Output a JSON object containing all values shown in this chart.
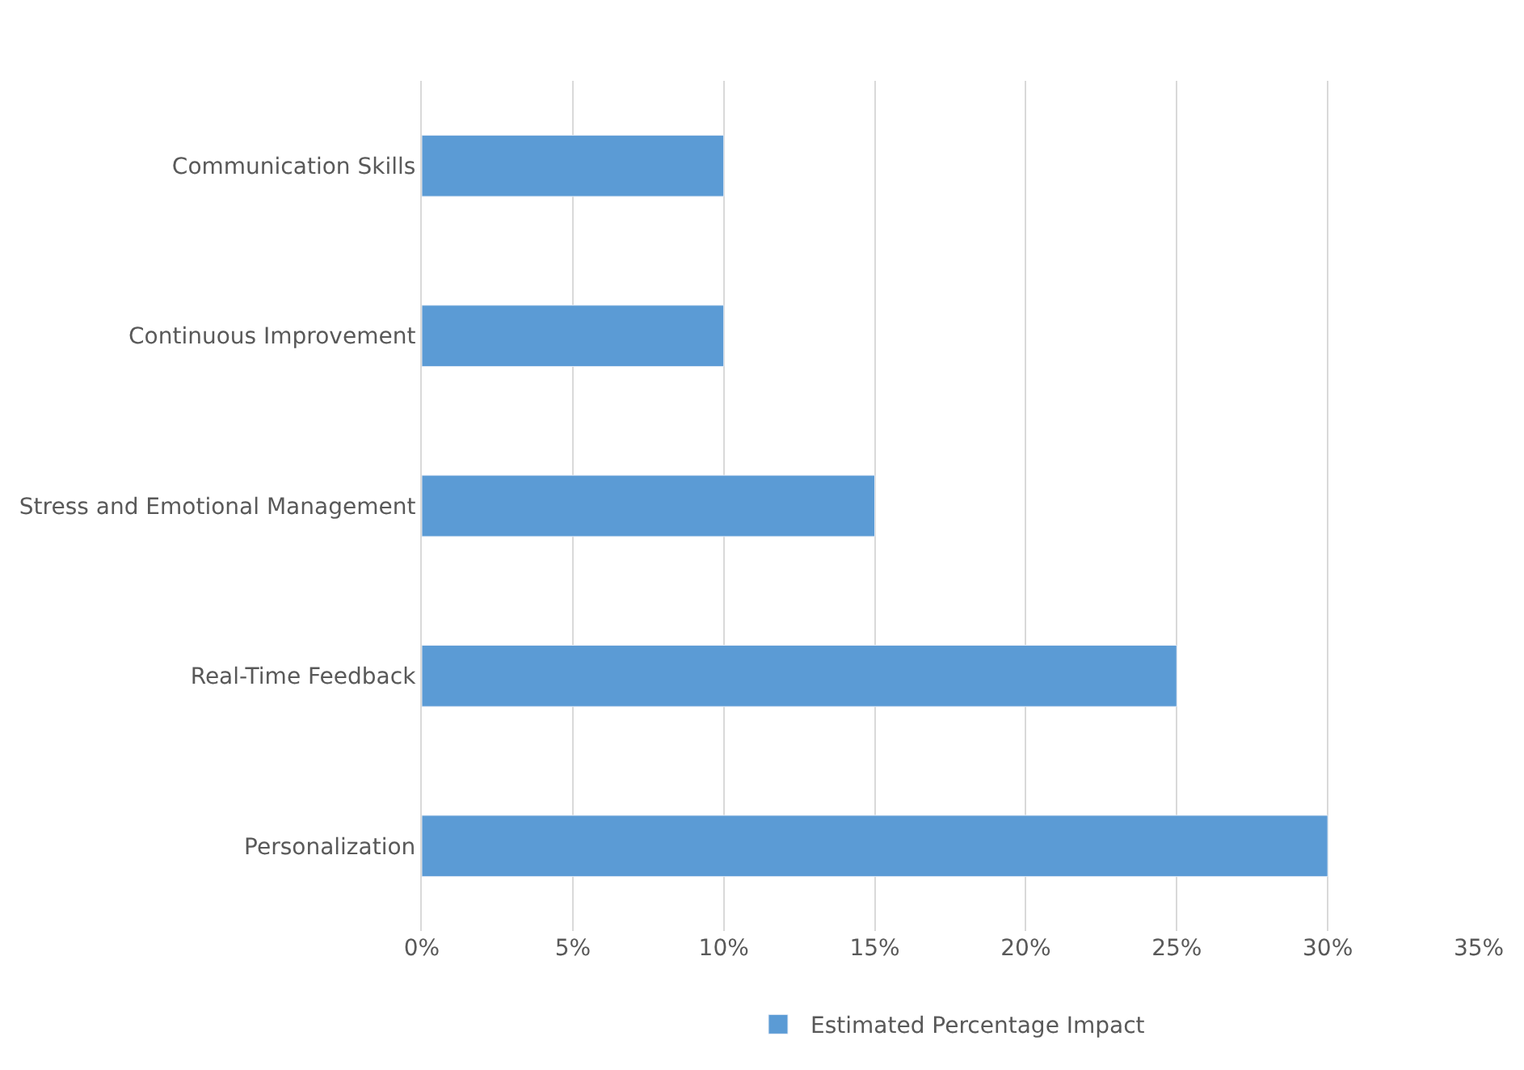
{
  "chart_data": {
    "type": "bar",
    "orientation": "horizontal",
    "categories": [
      "Communication Skills",
      "Continuous Improvement",
      "Stress and Emotional Management",
      "Real-Time Feedback",
      "Personalization"
    ],
    "series": [
      {
        "name": "Estimated Percentage Impact",
        "color": "#5b9bd5",
        "values": [
          10,
          10,
          15,
          25,
          30
        ]
      }
    ],
    "xlim": [
      0,
      35
    ],
    "xticks": [
      {
        "value": 0,
        "label": "0%"
      },
      {
        "value": 5,
        "label": "5%"
      },
      {
        "value": 10,
        "label": "10%"
      },
      {
        "value": 15,
        "label": "15%"
      },
      {
        "value": 20,
        "label": "20%"
      },
      {
        "value": 25,
        "label": "25%"
      },
      {
        "value": 30,
        "label": "30%"
      },
      {
        "value": 35,
        "label": "35%"
      }
    ],
    "grid": "x",
    "legend": "bottom"
  }
}
